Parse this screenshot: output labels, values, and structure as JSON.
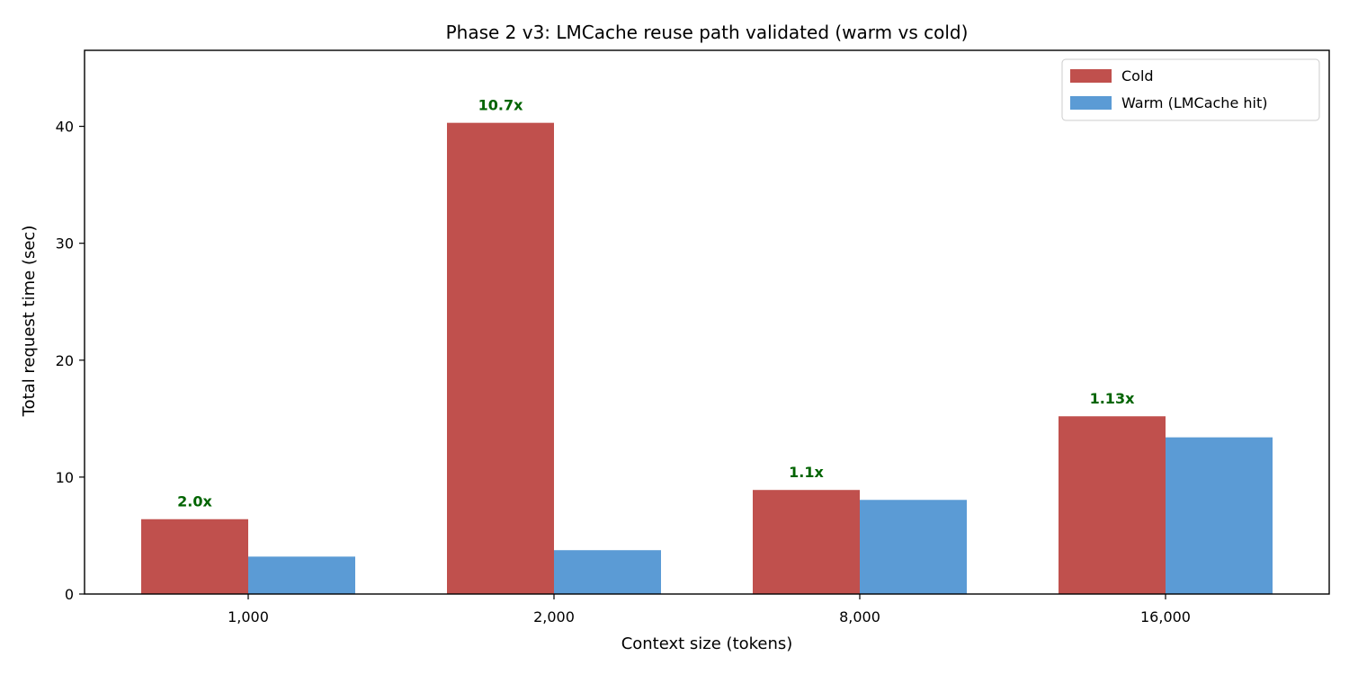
{
  "chart_data": {
    "type": "bar",
    "title": "Phase 2 v3: LMCache reuse path validated (warm vs cold)",
    "xlabel": "Context size (tokens)",
    "ylabel": "Total request time (sec)",
    "categories": [
      "1,000",
      "2,000",
      "8,000",
      "16,000"
    ],
    "series": [
      {
        "name": "Cold",
        "color": "#c0504d",
        "values": [
          6.4,
          40.3,
          8.9,
          15.2
        ]
      },
      {
        "name": "Warm (LMCache hit)",
        "color": "#5b9bd5",
        "values": [
          3.2,
          3.75,
          8.05,
          13.4
        ]
      }
    ],
    "annotations": [
      "2.0x",
      "10.7x",
      "1.1x",
      "1.13x"
    ],
    "annotation_color": "#006400",
    "ylim": [
      0,
      46.5
    ],
    "yticks": [
      0,
      10,
      20,
      30,
      40
    ],
    "grid": false,
    "legend": "top-right"
  }
}
